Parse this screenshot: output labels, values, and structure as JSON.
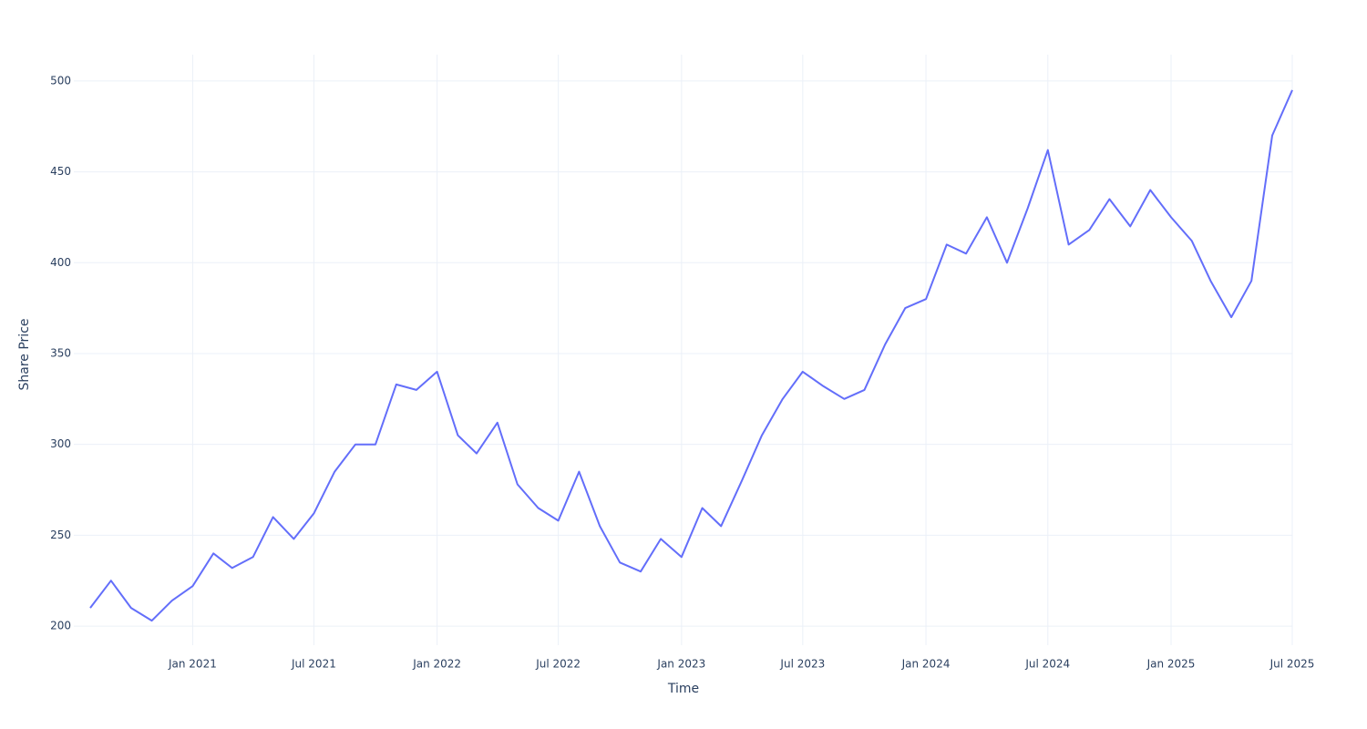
{
  "chart_data": {
    "type": "line",
    "x_label": "Time",
    "y_label": "Share Price",
    "x": [
      "2020-08",
      "2020-09",
      "2020-10",
      "2020-11",
      "2020-12",
      "2021-01",
      "2021-02",
      "2021-03",
      "2021-04",
      "2021-05",
      "2021-06",
      "2021-07",
      "2021-08",
      "2021-09",
      "2021-10",
      "2021-11",
      "2021-12",
      "2022-01",
      "2022-02",
      "2022-03",
      "2022-04",
      "2022-05",
      "2022-06",
      "2022-07",
      "2022-08",
      "2022-09",
      "2022-10",
      "2022-11",
      "2022-12",
      "2023-01",
      "2023-02",
      "2023-03",
      "2023-04",
      "2023-05",
      "2023-06",
      "2023-07",
      "2023-08",
      "2023-09",
      "2023-10",
      "2023-11",
      "2023-12",
      "2024-01",
      "2024-02",
      "2024-03",
      "2024-04",
      "2024-05",
      "2024-06",
      "2024-07",
      "2024-08",
      "2024-09",
      "2024-10",
      "2024-11",
      "2024-12",
      "2025-01",
      "2025-02",
      "2025-03",
      "2025-04",
      "2025-05",
      "2025-06",
      "2025-07"
    ],
    "series": [
      {
        "color": "#636efa",
        "values": [
          210,
          225,
          210,
          203,
          214,
          222,
          240,
          232,
          238,
          260,
          248,
          262,
          285,
          300,
          300,
          333,
          330,
          340,
          305,
          295,
          312,
          278,
          265,
          258,
          285,
          255,
          235,
          230,
          248,
          238,
          265,
          255,
          280,
          305,
          325,
          340,
          332,
          325,
          330,
          355,
          375,
          380,
          410,
          405,
          425,
          400,
          430,
          462,
          410,
          418,
          435,
          420,
          440,
          425,
          412,
          390,
          370,
          390,
          470,
          495
        ]
      }
    ],
    "xlim": [
      "2020-08",
      "2025-07"
    ],
    "xticks": [
      {
        "value": "2021-01",
        "label": "Jan 2021"
      },
      {
        "value": "2021-07",
        "label": "Jul 2021"
      },
      {
        "value": "2022-01",
        "label": "Jan 2022"
      },
      {
        "value": "2022-07",
        "label": "Jul 2022"
      },
      {
        "value": "2023-01",
        "label": "Jan 2023"
      },
      {
        "value": "2023-07",
        "label": "Jul 2023"
      },
      {
        "value": "2024-01",
        "label": "Jan 2024"
      },
      {
        "value": "2024-07",
        "label": "Jul 2024"
      },
      {
        "value": "2025-01",
        "label": "Jan 2025"
      },
      {
        "value": "2025-07",
        "label": "Jul 2025"
      }
    ],
    "ylim": [
      189.5,
      514.5
    ],
    "yticks": [
      200,
      250,
      300,
      350,
      400,
      450,
      500
    ],
    "grid": true
  }
}
